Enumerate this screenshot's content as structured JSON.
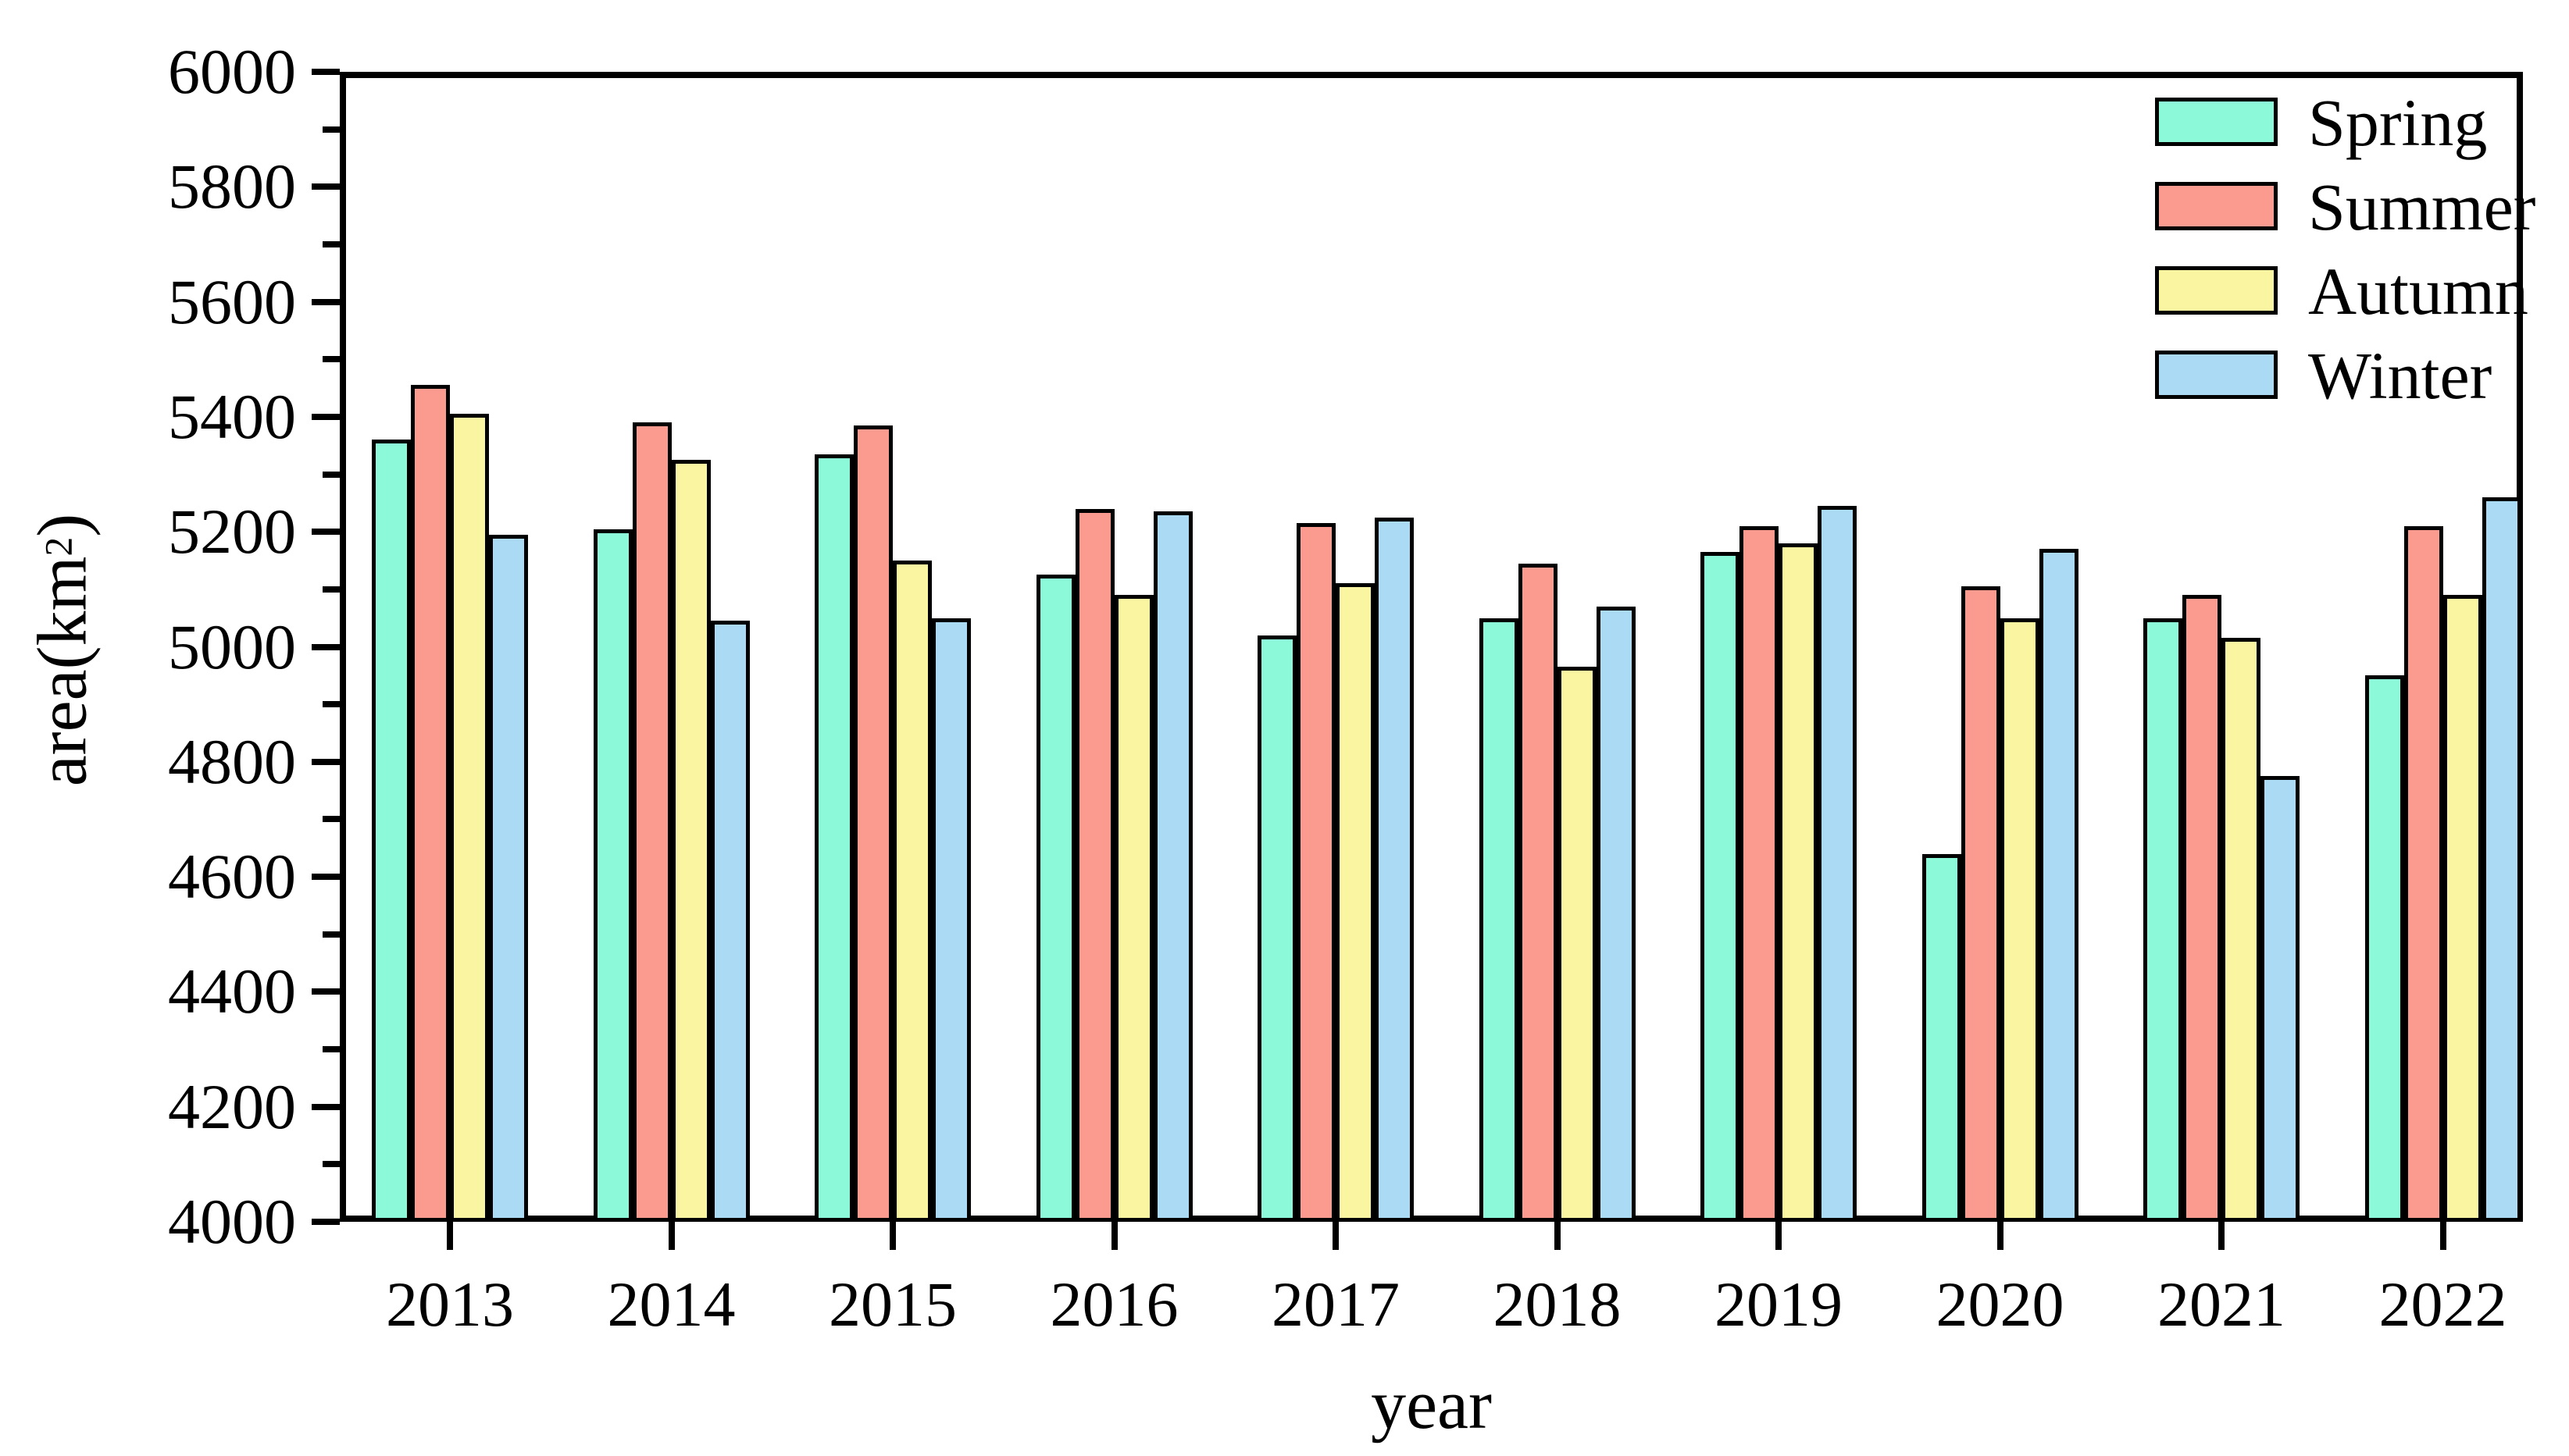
{
  "figure": {
    "background": "#ffffff",
    "axis_color": "#000000",
    "xlabel": "year",
    "ylabel_prefix": "area(km",
    "ylabel_sup": "2",
    "ylabel_suffix": ")"
  },
  "legend": {
    "items": [
      {
        "label": "Spring",
        "color": "#8CF9D8"
      },
      {
        "label": "Summer",
        "color": "#FB9A8F"
      },
      {
        "label": "Autumn",
        "color": "#FAF5A0"
      },
      {
        "label": "Winter",
        "color": "#ABDBF4"
      }
    ]
  },
  "chart_data": {
    "type": "bar",
    "title": "",
    "xlabel": "year",
    "ylabel": "area(km2)",
    "categories": [
      "2013",
      "2014",
      "2015",
      "2016",
      "2017",
      "2018",
      "2019",
      "2020",
      "2021",
      "2022"
    ],
    "series": [
      {
        "name": "Spring",
        "color": "#8CF9D8",
        "values": [
          5360,
          5205,
          5335,
          5125,
          5020,
          5050,
          5165,
          4640,
          5050,
          4950
        ]
      },
      {
        "name": "Summer",
        "color": "#FB9A8F",
        "values": [
          5455,
          5390,
          5385,
          5240,
          5215,
          5145,
          5210,
          5105,
          5090,
          5210
        ]
      },
      {
        "name": "Autumn",
        "color": "#FAF5A0",
        "values": [
          5405,
          5325,
          5150,
          5090,
          5110,
          4965,
          5180,
          5050,
          5015,
          5090
        ]
      },
      {
        "name": "Winter",
        "color": "#ABDBF4",
        "values": [
          5195,
          5045,
          5050,
          5235,
          5225,
          5070,
          5245,
          5170,
          4775,
          5260
        ]
      }
    ],
    "ylim": [
      4000,
      6000
    ],
    "y_major_step": 200,
    "y_minor_step": 100,
    "y_tick_labels": [
      "4000",
      "4200",
      "4400",
      "4600",
      "4800",
      "5000",
      "5200",
      "5400",
      "5600",
      "5800",
      "6000"
    ],
    "grid": false,
    "legend_position": "upper right",
    "bar_edge_color": "#000000"
  }
}
